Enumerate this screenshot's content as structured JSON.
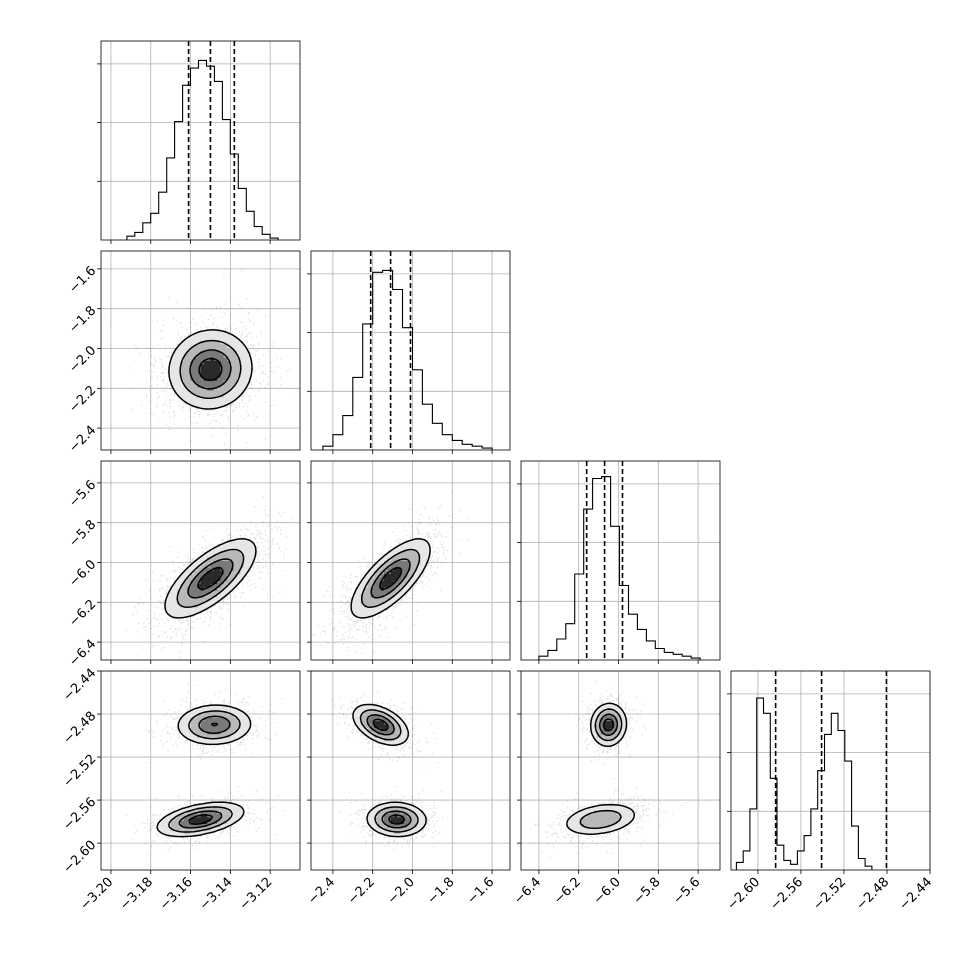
{
  "chart_data": {
    "type": "corner",
    "grid": true,
    "n_params": 4,
    "params": [
      {
        "range": [
          -3.205,
          -3.105
        ],
        "ticks": [
          -3.2,
          -3.18,
          -3.16,
          -3.14,
          -3.12
        ],
        "tick_labels": [
          "−3.20",
          "−3.18",
          "−3.16",
          "−3.14",
          "−3.12"
        ],
        "quantiles": [
          -3.161,
          -3.15,
          -3.138
        ],
        "hist": {
          "start": -3.192,
          "width": 0.004,
          "counts": [
            0.02,
            0.04,
            0.09,
            0.14,
            0.25,
            0.43,
            0.62,
            0.81,
            0.9,
            0.94,
            0.91,
            0.83,
            0.63,
            0.45,
            0.27,
            0.15,
            0.07,
            0.03,
            0.01
          ]
        }
      },
      {
        "range": [
          -2.51,
          -1.51
        ],
        "ticks": [
          -2.4,
          -2.2,
          -2.0,
          -1.8,
          -1.6
        ],
        "tick_labels": [
          "−2.4",
          "−2.2",
          "−2.0",
          "−1.8",
          "−1.6"
        ],
        "quantiles": [
          -2.21,
          -2.11,
          -2.01
        ],
        "hist": {
          "start": -2.45,
          "width": 0.05,
          "counts": [
            0.02,
            0.08,
            0.18,
            0.38,
            0.66,
            0.93,
            0.94,
            0.84,
            0.64,
            0.42,
            0.24,
            0.14,
            0.08,
            0.05,
            0.03,
            0.02,
            0.01
          ]
        }
      },
      {
        "range": [
          -6.49,
          -5.49
        ],
        "ticks": [
          -6.4,
          -6.2,
          -6.0,
          -5.8,
          -5.6
        ],
        "tick_labels": [
          "−6.4",
          "−6.2",
          "−6.0",
          "−5.8",
          "−5.6"
        ],
        "quantiles": [
          -6.16,
          -6.07,
          -5.98
        ],
        "hist": {
          "start": -6.4,
          "width": 0.045,
          "counts": [
            0.02,
            0.05,
            0.11,
            0.19,
            0.45,
            0.79,
            0.95,
            0.96,
            0.7,
            0.39,
            0.24,
            0.16,
            0.1,
            0.06,
            0.04,
            0.03,
            0.02,
            0.01
          ]
        }
      },
      {
        "range": [
          -2.625,
          -2.44
        ],
        "ticks": [
          -2.6,
          -2.56,
          -2.52,
          -2.48,
          -2.44
        ],
        "tick_labels": [
          "−2.60",
          "−2.56",
          "−2.52",
          "−2.48",
          "−2.44"
        ],
        "quantiles": [
          -2.5835,
          -2.5408,
          -2.4805
        ],
        "hist": {
          "start": -2.62,
          "width": 0.0063,
          "counts": [
            0.04,
            0.1,
            0.32,
            0.9,
            0.82,
            0.48,
            0.13,
            0.05,
            0.03,
            0.1,
            0.18,
            0.32,
            0.52,
            0.71,
            0.82,
            0.73,
            0.57,
            0.23,
            0.06,
            0.02
          ]
        }
      }
    ],
    "pairs": [
      {
        "row": 1,
        "col": 0,
        "modes": [
          {
            "mx": -3.15,
            "my": -2.105,
            "sx": 0.0105,
            "sy": 0.1,
            "rho": 0.05,
            "w": 1.0
          }
        ]
      },
      {
        "row": 2,
        "col": 0,
        "modes": [
          {
            "mx": -3.15,
            "my": -6.08,
            "sx": 0.0115,
            "sy": 0.1,
            "rho": 0.7,
            "w": 1.0
          }
        ]
      },
      {
        "row": 2,
        "col": 1,
        "modes": [
          {
            "mx": -2.11,
            "my": -6.08,
            "sx": 0.1,
            "sy": 0.1,
            "rho": 0.72,
            "w": 1.0
          }
        ]
      },
      {
        "row": 3,
        "col": 0,
        "modes": [
          {
            "mx": -3.148,
            "my": -2.49,
            "sx": 0.0095,
            "sy": 0.0095,
            "rho": 0.05,
            "w": 0.5
          },
          {
            "mx": -3.155,
            "my": -2.578,
            "sx": 0.011,
            "sy": 0.008,
            "rho": 0.45,
            "w": 0.5
          }
        ]
      },
      {
        "row": 3,
        "col": 1,
        "modes": [
          {
            "mx": -2.16,
            "my": -2.49,
            "sx": 0.07,
            "sy": 0.0095,
            "rho": -0.45,
            "w": 0.5
          },
          {
            "mx": -2.08,
            "my": -2.578,
            "sx": 0.075,
            "sy": 0.008,
            "rho": -0.05,
            "w": 0.5
          }
        ]
      },
      {
        "row": 3,
        "col": 2,
        "modes": [
          {
            "mx": -6.05,
            "my": -2.49,
            "sx": 0.045,
            "sy": 0.01,
            "rho": 0.05,
            "w": 0.5
          },
          {
            "mx": -6.09,
            "my": -2.578,
            "sx": 0.1,
            "sy": 0.008,
            "rho": 0.3,
            "w": 0.5
          }
        ]
      }
    ]
  }
}
